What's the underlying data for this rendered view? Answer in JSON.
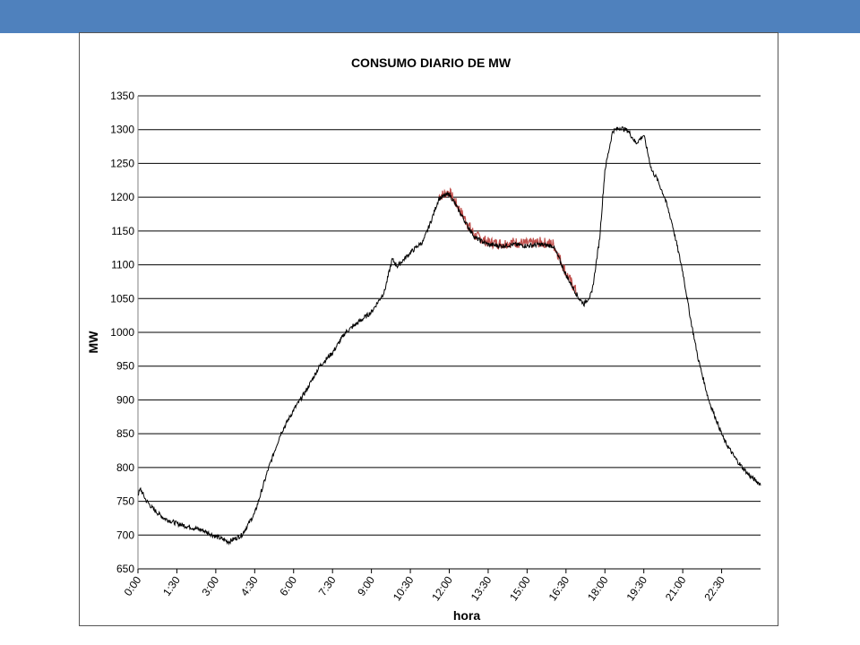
{
  "colors": {
    "banner": "#4f81bd",
    "frame_border": "#555555",
    "gridline": "#000000",
    "line": "#000000",
    "line_highlight": "#c0504d"
  },
  "chart_data": {
    "type": "line",
    "title": "CONSUMO DIARIO DE MW",
    "xlabel": "hora",
    "ylabel": "MW",
    "ylim": [
      650,
      1350
    ],
    "ytick_step": 50,
    "yticks": [
      "650",
      "700",
      "750",
      "800",
      "850",
      "900",
      "950",
      "1000",
      "1050",
      "1100",
      "1150",
      "1200",
      "1250",
      "1300",
      "1350"
    ],
    "xlim_hours": [
      0,
      24
    ],
    "xticks": [
      "0:00",
      "1:30",
      "3:00",
      "4:30",
      "6:00",
      "7:30",
      "9:00",
      "10:30",
      "12:00",
      "13:30",
      "15:00",
      "16:30",
      "18:00",
      "19:30",
      "21:00",
      "22:30"
    ],
    "grid": true,
    "legend": "none",
    "series": [
      {
        "x_hours": [
          0,
          0.1,
          0.3,
          0.6,
          1.0,
          1.5,
          2.0,
          2.5,
          3.0,
          3.5,
          4.0,
          4.5,
          5.0,
          5.5,
          6.0,
          6.5,
          7.0,
          7.5,
          8.0,
          8.5,
          9.0,
          9.5,
          9.8,
          10.0,
          10.5,
          11.0,
          11.3,
          11.6,
          12.0,
          12.3,
          12.7,
          13.0,
          13.5,
          14.0,
          14.5,
          15.0,
          15.5,
          16.0,
          16.2,
          16.5,
          17.0,
          17.2,
          17.5,
          17.8,
          18.0,
          18.3,
          18.6,
          18.9,
          19.2,
          19.5,
          19.8,
          20.0,
          20.3,
          20.6,
          21.0,
          21.3,
          21.6,
          22.0,
          22.3,
          22.6,
          23.0,
          23.3,
          23.6,
          24.0
        ],
        "values": [
          760,
          768,
          752,
          738,
          725,
          717,
          712,
          707,
          698,
          690,
          700,
          732,
          795,
          850,
          885,
          915,
          950,
          970,
          1000,
          1015,
          1030,
          1060,
          1108,
          1098,
          1118,
          1135,
          1165,
          1198,
          1205,
          1185,
          1158,
          1140,
          1130,
          1128,
          1130,
          1128,
          1130,
          1128,
          1112,
          1085,
          1050,
          1042,
          1058,
          1140,
          1240,
          1298,
          1303,
          1298,
          1280,
          1292,
          1240,
          1228,
          1200,
          1160,
          1090,
          1020,
          960,
          900,
          870,
          840,
          815,
          800,
          787,
          775
        ]
      }
    ]
  }
}
